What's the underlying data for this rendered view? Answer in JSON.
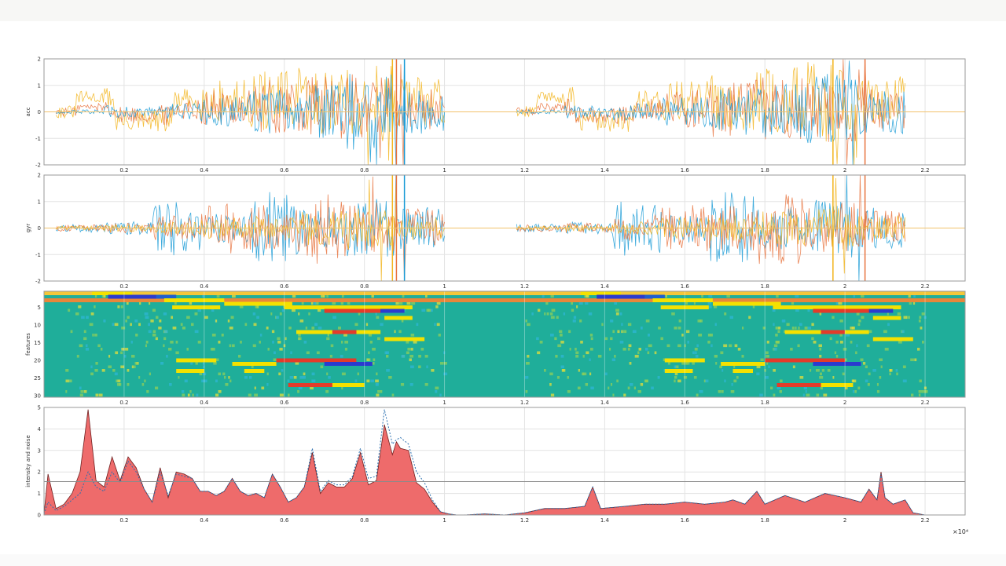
{
  "figure": {
    "x_exponent_label": "×10⁴",
    "colors": {
      "blue": "#1a9bd6",
      "orange": "#e8733e",
      "yellow": "#f2b41c",
      "dark": "#3b3b57",
      "area_fill": "#ee6b6b",
      "area_edge": "#6e2020",
      "threshold": "#8a8a8a",
      "heat_base": "#1fae9a"
    }
  },
  "chart_data": [
    {
      "type": "line",
      "ylabel": "acc",
      "xlim": [
        0,
        2.3
      ],
      "ylim": [
        -2,
        2
      ],
      "xticks": [
        "0.2",
        "0.4",
        "0.6",
        "0.8",
        "1",
        "1.2",
        "1.4",
        "1.6",
        "1.8",
        "2",
        "2.2"
      ],
      "yticks": [
        "2",
        "1",
        "0",
        "-1",
        "-2"
      ],
      "grid": true,
      "segments": [
        [
          0.0,
          1.0
        ],
        [
          1.15,
          2.15
        ]
      ],
      "series": [
        {
          "color": "yellow",
          "activity": [
            0.15,
            0.25,
            0.3,
            0.5,
            0.7,
            0.8,
            0.95,
            0.6
          ],
          "offset": 0.45
        },
        {
          "color": "orange",
          "activity": [
            0.1,
            0.2,
            0.25,
            0.45,
            0.7,
            0.75,
            0.8,
            0.5
          ],
          "offset": 0.15
        },
        {
          "color": "blue",
          "activity": [
            0.05,
            0.15,
            0.2,
            0.35,
            0.55,
            0.65,
            0.9,
            0.55
          ],
          "offset": 0.0
        }
      ]
    },
    {
      "type": "line",
      "ylabel": "gyr",
      "xlim": [
        0,
        2.3
      ],
      "ylim": [
        -2,
        2
      ],
      "xticks": [
        "0.2",
        "0.4",
        "0.6",
        "0.8",
        "1",
        "1.2",
        "1.4",
        "1.6",
        "1.8",
        "2",
        "2.2"
      ],
      "yticks": [
        "2",
        "1",
        "0",
        "-1",
        "-2"
      ],
      "grid": true,
      "segments": [
        [
          0.0,
          1.0
        ],
        [
          1.15,
          2.15
        ]
      ],
      "series": [
        {
          "color": "blue",
          "activity": [
            0.1,
            0.15,
            0.65,
            0.35,
            0.85,
            0.5,
            0.7,
            0.5
          ],
          "offset": 0.0
        },
        {
          "color": "orange",
          "activity": [
            0.08,
            0.12,
            0.3,
            0.6,
            0.55,
            0.85,
            0.6,
            0.45
          ],
          "offset": 0.0
        },
        {
          "color": "yellow",
          "activity": [
            0.05,
            0.08,
            0.15,
            0.25,
            0.3,
            0.4,
            0.5,
            0.3
          ],
          "offset": 0.0
        }
      ]
    },
    {
      "type": "heatmap",
      "ylabel": "features",
      "xlim": [
        0,
        2.3
      ],
      "ylim": [
        1,
        30
      ],
      "xticks": [
        "0.2",
        "0.4",
        "0.6",
        "0.8",
        "1",
        "1.2",
        "1.4",
        "1.6",
        "1.8",
        "2",
        "2.2"
      ],
      "yticks": [
        "5",
        "10",
        "15",
        "20",
        "25",
        "30"
      ],
      "grid": true,
      "bands": [
        {
          "row": 1,
          "x0": 0.0,
          "x1": 2.3,
          "color": "#f3c73a"
        },
        {
          "row": 3,
          "x0": 0.0,
          "x1": 2.3,
          "color": "#e8873a"
        },
        {
          "row": 1,
          "x0": 0.12,
          "x1": 0.22,
          "color": "#f4e100"
        },
        {
          "row": 2,
          "x0": 0.16,
          "x1": 0.3,
          "color": "#2a3bcf"
        },
        {
          "row": 2,
          "x0": 0.28,
          "x1": 0.33,
          "color": "#1e5fd0"
        },
        {
          "row": 3,
          "x0": 0.3,
          "x1": 0.45,
          "color": "#f4e100"
        },
        {
          "row": 5,
          "x0": 0.32,
          "x1": 0.44,
          "color": "#f4e100"
        },
        {
          "row": 4,
          "x0": 0.45,
          "x1": 0.62,
          "color": "#f4e100"
        },
        {
          "row": 5,
          "x0": 0.6,
          "x1": 0.92,
          "color": "#f4e100"
        },
        {
          "row": 6,
          "x0": 0.7,
          "x1": 0.85,
          "color": "#e33b2a"
        },
        {
          "row": 12,
          "x0": 0.63,
          "x1": 0.72,
          "color": "#f4e100"
        },
        {
          "row": 12,
          "x0": 0.72,
          "x1": 0.78,
          "color": "#e33b2a"
        },
        {
          "row": 12,
          "x0": 0.78,
          "x1": 0.84,
          "color": "#f4e100"
        },
        {
          "row": 20,
          "x0": 0.33,
          "x1": 0.43,
          "color": "#f4e100"
        },
        {
          "row": 21,
          "x0": 0.47,
          "x1": 0.58,
          "color": "#f4e100"
        },
        {
          "row": 20,
          "x0": 0.58,
          "x1": 0.78,
          "color": "#e33b2a"
        },
        {
          "row": 21,
          "x0": 0.7,
          "x1": 0.82,
          "color": "#2a3bcf"
        },
        {
          "row": 23,
          "x0": 0.33,
          "x1": 0.4,
          "color": "#f4e100"
        },
        {
          "row": 23,
          "x0": 0.5,
          "x1": 0.55,
          "color": "#f4e100"
        },
        {
          "row": 27,
          "x0": 0.61,
          "x1": 0.72,
          "color": "#e33b2a"
        },
        {
          "row": 27,
          "x0": 0.72,
          "x1": 0.8,
          "color": "#f4e100"
        },
        {
          "row": 8,
          "x0": 0.85,
          "x1": 0.92,
          "color": "#f4e100"
        },
        {
          "row": 6,
          "x0": 0.84,
          "x1": 0.9,
          "color": "#2a3bcf"
        },
        {
          "row": 14,
          "x0": 0.85,
          "x1": 0.95,
          "color": "#f4e100"
        }
      ],
      "repeat_offset": 1.22
    },
    {
      "type": "area",
      "ylabel": "intensity and noise",
      "xlim": [
        0,
        2.3
      ],
      "ylim": [
        0,
        5
      ],
      "xticks": [
        "0.2",
        "0.4",
        "0.6",
        "0.8",
        "1",
        "1.2",
        "1.4",
        "1.6",
        "1.8",
        "2",
        "2.2"
      ],
      "yticks": [
        "5",
        "4",
        "3",
        "2",
        "1",
        "0"
      ],
      "grid": true,
      "threshold": 1.55,
      "x": [
        0.0,
        0.01,
        0.03,
        0.05,
        0.07,
        0.09,
        0.11,
        0.13,
        0.15,
        0.17,
        0.19,
        0.21,
        0.23,
        0.25,
        0.27,
        0.29,
        0.31,
        0.33,
        0.35,
        0.37,
        0.39,
        0.41,
        0.43,
        0.45,
        0.47,
        0.49,
        0.51,
        0.53,
        0.55,
        0.57,
        0.59,
        0.61,
        0.63,
        0.65,
        0.67,
        0.69,
        0.71,
        0.73,
        0.75,
        0.77,
        0.79,
        0.81,
        0.83,
        0.85,
        0.87,
        0.88,
        0.89,
        0.91,
        0.93,
        0.95,
        0.97,
        0.99,
        1.01,
        1.03,
        1.05,
        1.1,
        1.15,
        1.2,
        1.25,
        1.3,
        1.35,
        1.37,
        1.39,
        1.45,
        1.5,
        1.55,
        1.6,
        1.65,
        1.7,
        1.72,
        1.75,
        1.78,
        1.8,
        1.85,
        1.9,
        1.95,
        2.0,
        2.04,
        2.06,
        2.08,
        2.09,
        2.1,
        2.12,
        2.15,
        2.17,
        2.2,
        2.3
      ],
      "values": [
        0.05,
        1.9,
        0.3,
        0.5,
        1.0,
        2.0,
        4.9,
        1.6,
        1.3,
        2.7,
        1.6,
        2.7,
        2.2,
        1.2,
        0.6,
        2.2,
        0.8,
        2.0,
        1.9,
        1.7,
        1.1,
        1.1,
        0.9,
        1.1,
        1.7,
        1.1,
        0.9,
        1.0,
        0.8,
        1.9,
        1.3,
        0.6,
        0.8,
        1.3,
        2.9,
        1.0,
        1.5,
        1.3,
        1.3,
        1.7,
        2.9,
        1.4,
        1.6,
        4.2,
        2.8,
        3.4,
        3.1,
        3.0,
        1.5,
        1.2,
        0.6,
        0.15,
        0.05,
        0.0,
        0.0,
        0.05,
        0.0,
        0.1,
        0.3,
        0.3,
        0.4,
        1.3,
        0.3,
        0.4,
        0.5,
        0.5,
        0.6,
        0.5,
        0.6,
        0.7,
        0.5,
        1.1,
        0.5,
        0.9,
        0.6,
        1.0,
        0.8,
        0.6,
        1.2,
        0.7,
        2.0,
        0.8,
        0.5,
        0.7,
        0.1,
        0.0,
        0.0
      ],
      "noise": [
        0.05,
        0.6,
        0.2,
        0.4,
        0.7,
        1.0,
        2.0,
        1.3,
        1.1,
        2.0,
        1.5,
        2.5,
        2.0,
        1.2,
        0.6,
        2.0,
        0.9,
        1.9,
        1.8,
        1.7,
        1.1,
        1.1,
        0.9,
        1.1,
        1.7,
        1.1,
        0.9,
        1.0,
        0.8,
        1.9,
        1.3,
        0.6,
        0.8,
        1.3,
        3.1,
        1.1,
        1.6,
        1.4,
        1.4,
        1.8,
        3.1,
        1.7,
        1.8,
        4.9,
        3.3,
        3.5,
        3.6,
        3.3,
        2.0,
        1.5,
        0.7,
        0.15,
        0.05,
        0.0,
        0.0,
        0.05,
        0.0,
        0.1,
        0.3,
        0.3,
        0.4,
        1.3,
        0.3,
        0.4,
        0.5,
        0.5,
        0.6,
        0.5,
        0.6,
        0.7,
        0.5,
        1.1,
        0.5,
        0.9,
        0.6,
        1.0,
        0.8,
        0.6,
        1.2,
        0.7,
        1.9,
        0.8,
        0.5,
        0.7,
        0.1,
        0.0,
        0.0
      ]
    }
  ]
}
